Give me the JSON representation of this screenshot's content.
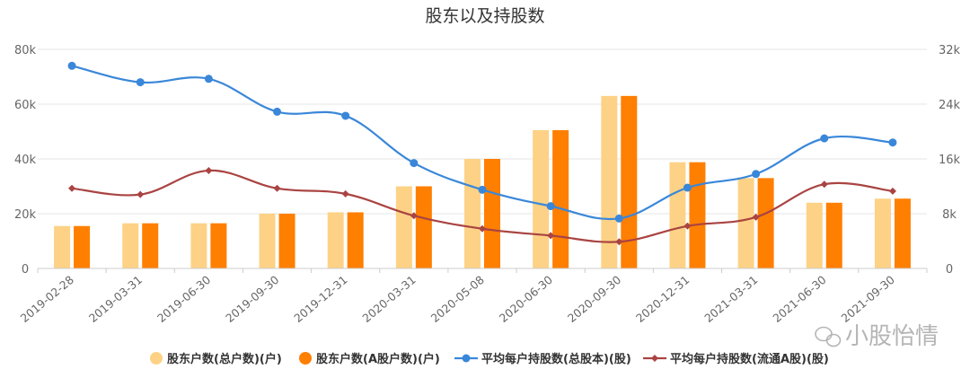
{
  "chart_data": {
    "type": "bar+line",
    "title": "股东以及持股数",
    "categories": [
      "2019-02-28",
      "2019-03-31",
      "2019-06-30",
      "2019-09-30",
      "2019-12-31",
      "2020-03-31",
      "2020-05-08",
      "2020-06-30",
      "2020-09-30",
      "2020-12-31",
      "2021-03-31",
      "2021-06-30",
      "2021-09-30"
    ],
    "left_axis": {
      "ylim": [
        0,
        80000
      ],
      "ticks": [
        "0",
        "20k",
        "40k",
        "60k",
        "80k"
      ]
    },
    "right_axis": {
      "ylim": [
        0,
        32000
      ],
      "ticks": [
        "0",
        "8k",
        "16k",
        "24k",
        "32k"
      ]
    },
    "grid": true,
    "series": [
      {
        "name": "股东户数(总户数)(户)",
        "type": "bar",
        "axis": "left",
        "color": "#fdd286",
        "values": [
          15500,
          16500,
          16500,
          20000,
          20500,
          30000,
          40000,
          50500,
          63000,
          38800,
          33000,
          24000,
          25500
        ]
      },
      {
        "name": "股东户数(A股户数)(户)",
        "type": "bar",
        "axis": "left",
        "color": "#ff7f00",
        "values": [
          15500,
          16500,
          16500,
          20000,
          20500,
          30000,
          40000,
          50500,
          63000,
          38800,
          33000,
          24000,
          25500
        ]
      },
      {
        "name": "平均每户持股数(总股本)(股)",
        "type": "line",
        "axis": "right",
        "color": "#3a87d9",
        "values": [
          29600,
          27200,
          27700,
          22900,
          22300,
          15400,
          11500,
          9100,
          7300,
          11800,
          13800,
          19000,
          18400
        ]
      },
      {
        "name": "平均每户持股数(流通A股)(股)",
        "type": "line",
        "axis": "right",
        "color": "#a94442",
        "values": [
          11700,
          10800,
          14300,
          11700,
          10900,
          7700,
          5800,
          4800,
          3900,
          6200,
          7500,
          12300,
          11300
        ]
      }
    ],
    "legend_position": "bottom"
  },
  "watermark": "小股怡情"
}
